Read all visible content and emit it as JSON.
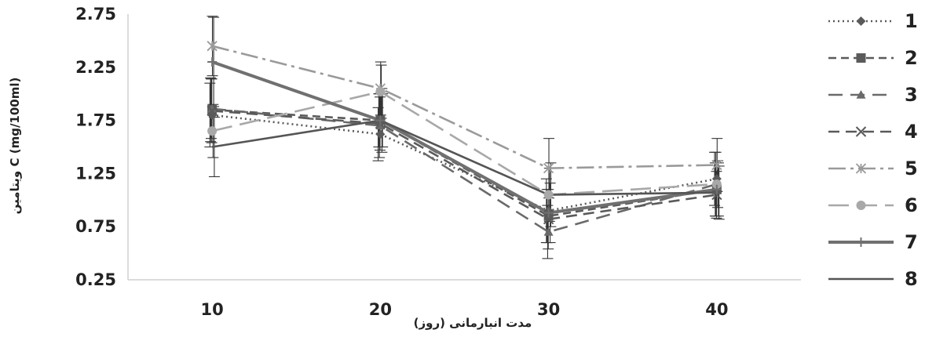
{
  "chart_data": {
    "type": "line",
    "title": "",
    "xlabel": "مدت انبارمانی (روز)",
    "ylabel": "ویتامین C (mg/100ml)",
    "x": [
      10,
      20,
      30,
      40
    ],
    "x_tick_labels": [
      "10",
      "20",
      "30",
      "40"
    ],
    "y_ticks": [
      0.25,
      0.75,
      1.25,
      1.75,
      2.25,
      2.75
    ],
    "y_tick_labels": [
      "0.25",
      "0.75",
      "1.25",
      "1.75",
      "2.25",
      "2.75"
    ],
    "ylim": [
      0.25,
      2.75
    ],
    "xlim": [
      5,
      45
    ],
    "grid": false,
    "legend_position": "right",
    "series": [
      {
        "name": "1",
        "values": [
          1.8,
          1.62,
          0.9,
          1.2
        ],
        "error": [
          0.3,
          0.25,
          0.3,
          0.25
        ],
        "color": "#5a5a5a",
        "dash": "2,4",
        "marker": "diamond"
      },
      {
        "name": "2",
        "values": [
          1.85,
          1.75,
          0.85,
          1.1
        ],
        "error": [
          0.3,
          0.25,
          0.25,
          0.25
        ],
        "color": "#5a5a5a",
        "dash": "10,6",
        "marker": "square"
      },
      {
        "name": "3",
        "values": [
          1.86,
          1.7,
          0.7,
          1.15
        ],
        "error": [
          0.28,
          0.3,
          0.25,
          0.3
        ],
        "color": "#6a6a6a",
        "dash": "18,10",
        "marker": "triangle"
      },
      {
        "name": "4",
        "values": [
          1.84,
          1.72,
          0.82,
          1.05
        ],
        "error": [
          0.3,
          0.25,
          0.28,
          0.22
        ],
        "color": "#5a5a5a",
        "dash": "14,8",
        "marker": "x"
      },
      {
        "name": "5",
        "values": [
          2.45,
          2.05,
          1.3,
          1.33
        ],
        "error": [
          0.28,
          0.25,
          0.28,
          0.25
        ],
        "color": "#9a9a9a",
        "dash": "22,6,4,6",
        "marker": "star"
      },
      {
        "name": "6",
        "values": [
          1.65,
          2.02,
          1.05,
          1.15
        ],
        "error": [
          0.25,
          0.25,
          0.25,
          0.22
        ],
        "color": "#a8a8a8",
        "dash": "26,10",
        "marker": "circle"
      },
      {
        "name": "7",
        "values": [
          2.3,
          1.75,
          0.88,
          1.1
        ],
        "error": [
          0.42,
          0.3,
          0.28,
          0.25
        ],
        "color": "#707070",
        "dash": "",
        "marker": "plus"
      },
      {
        "name": "8",
        "values": [
          1.5,
          1.75,
          1.05,
          1.07
        ],
        "error": [
          0.28,
          0.25,
          0.3,
          0.25
        ],
        "color": "#555555",
        "dash": "",
        "marker": "none"
      }
    ]
  }
}
